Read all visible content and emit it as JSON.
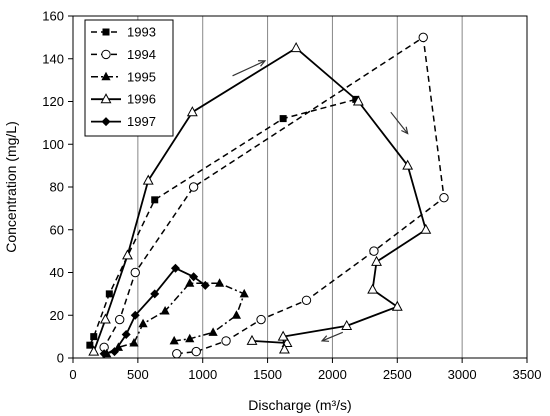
{
  "chart_data": {
    "type": "line",
    "xlabel": "Discharge (m³/s)",
    "ylabel": "Concentration  (mg/L)",
    "xlim": [
      0,
      3500
    ],
    "ylim": [
      0,
      160
    ],
    "xticks": [
      "0",
      "500",
      "1000",
      "1500",
      "2000",
      "2500",
      "3000",
      "3500"
    ],
    "yticks": [
      "0",
      "20",
      "40",
      "60",
      "80",
      "100",
      "120",
      "140",
      "160"
    ],
    "grid": "vertical",
    "legend": "top-left",
    "series": [
      {
        "name": "1993",
        "marker": "square",
        "line": "dashed",
        "points": [
          [
            130,
            6
          ],
          [
            160,
            10
          ],
          [
            280,
            30
          ],
          [
            630,
            74
          ],
          [
            1620,
            112
          ],
          [
            2180,
            121
          ]
        ]
      },
      {
        "name": "1994",
        "marker": "circle-open",
        "line": "dashed",
        "points": [
          [
            800,
            2
          ],
          [
            950,
            3
          ],
          [
            1180,
            8
          ],
          [
            1450,
            18
          ],
          [
            1800,
            27
          ],
          [
            2320,
            50
          ],
          [
            2860,
            75
          ],
          [
            2700,
            150
          ],
          [
            930,
            80
          ],
          [
            480,
            40
          ],
          [
            360,
            18
          ],
          [
            240,
            5
          ]
        ]
      },
      {
        "name": "1995",
        "marker": "triangle-filled",
        "line": "dashdot",
        "points": [
          [
            260,
            2
          ],
          [
            350,
            5
          ],
          [
            470,
            7
          ],
          [
            540,
            16
          ],
          [
            710,
            22
          ],
          [
            900,
            35
          ],
          [
            1130,
            35
          ],
          [
            1320,
            30
          ],
          [
            1260,
            20
          ],
          [
            1080,
            12
          ],
          [
            900,
            9
          ],
          [
            780,
            8
          ]
        ]
      },
      {
        "name": "1996",
        "marker": "triangle-open",
        "line": "solid",
        "points": [
          [
            1380,
            8
          ],
          [
            1650,
            7
          ],
          [
            1630,
            4
          ],
          [
            1620,
            10
          ],
          [
            2110,
            15
          ],
          [
            2500,
            24
          ],
          [
            2310,
            32
          ],
          [
            2340,
            45
          ],
          [
            2720,
            60
          ],
          [
            2580,
            90
          ],
          [
            2200,
            120
          ],
          [
            1720,
            145
          ],
          [
            920,
            115
          ],
          [
            580,
            83
          ],
          [
            420,
            48
          ],
          [
            250,
            18
          ],
          [
            160,
            3
          ]
        ]
      },
      {
        "name": "1997",
        "marker": "diamond",
        "line": "solid",
        "points": [
          [
            240,
            2
          ],
          [
            320,
            3
          ],
          [
            410,
            11
          ],
          [
            480,
            20
          ],
          [
            630,
            30
          ],
          [
            790,
            42
          ],
          [
            930,
            38
          ],
          [
            1020,
            34
          ]
        ]
      }
    ],
    "colors": {
      "line": "#000000",
      "background": "#ffffff"
    }
  }
}
